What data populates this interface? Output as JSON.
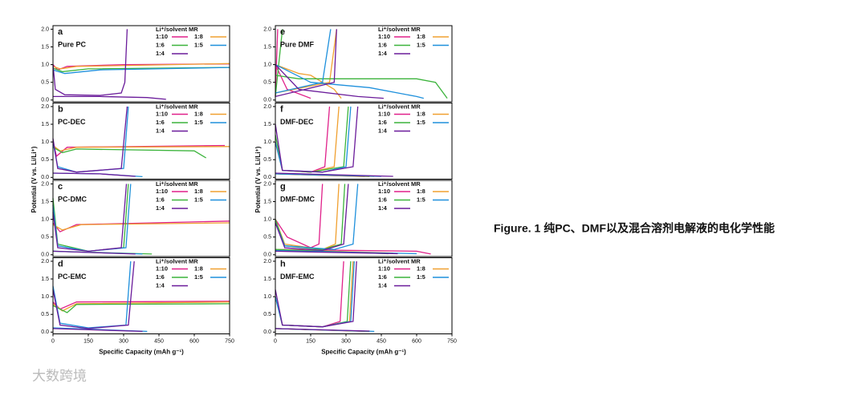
{
  "figure": {
    "ylabel": "Potential (V vs. Li/Li⁺)",
    "caption": "Figure. 1 纯PC、DMF以及混合溶剂电解液的电化学性能",
    "watermark": "大数跨境"
  },
  "chart_data": [
    {
      "type": "line",
      "label": "a",
      "name": "Pure PC",
      "legend_title": "Li⁺/solvent MR",
      "xlim": [
        0,
        750
      ],
      "ylim": [
        -0.05,
        2.1
      ],
      "yticks": [
        {
          "value": 0,
          "label": "0.0"
        },
        0.5,
        {
          "value": 1,
          "label": "1.0"
        },
        1.5,
        {
          "value": 2,
          "label": "2.0"
        }
      ],
      "series": [
        {
          "name": "1:10",
          "color": "#e0218a",
          "x": [
            0,
            20,
            60,
            300,
            750
          ],
          "values": [
            1.0,
            0.85,
            0.95,
            1.0,
            1.02
          ]
        },
        {
          "name": "1:8",
          "color": "#f0a030",
          "x": [
            0,
            30,
            100,
            750
          ],
          "values": [
            0.95,
            0.88,
            0.95,
            1.03
          ]
        },
        {
          "name": "1:6",
          "color": "#3cb43c",
          "x": [
            0,
            40,
            150,
            750
          ],
          "values": [
            0.9,
            0.8,
            0.88,
            0.92
          ]
        },
        {
          "name": "1:5",
          "color": "#1e90dc",
          "x": [
            0,
            50,
            200,
            750
          ],
          "values": [
            0.85,
            0.75,
            0.85,
            0.92
          ]
        },
        {
          "name": "1:4",
          "color": "#6a1b9a",
          "x": [
            0,
            10,
            50,
            200,
            290,
            305,
            315,
            null,
            0,
            200,
            400,
            480
          ],
          "values": [
            1.0,
            0.3,
            0.15,
            0.13,
            0.2,
            0.5,
            2.0,
            null,
            0.1,
            0.1,
            0.07,
            0.02
          ]
        }
      ]
    },
    {
      "type": "line",
      "label": "b",
      "name": "PC-DEC",
      "legend_title": "Li⁺/solvent MR",
      "xlim": [
        0,
        750
      ],
      "ylim": [
        -0.05,
        2.1
      ],
      "yticks": [
        {
          "value": 0,
          "label": "0.0"
        },
        0.5,
        {
          "value": 1,
          "label": "1.0"
        },
        1.5,
        {
          "value": 2,
          "label": "2.0"
        }
      ],
      "series": [
        {
          "name": "1:10",
          "color": "#e0218a",
          "x": [
            0,
            15,
            60,
            730
          ],
          "values": [
            1.0,
            0.6,
            0.85,
            0.9
          ]
        },
        {
          "name": "1:8",
          "color": "#f0a030",
          "x": [
            0,
            30,
            100,
            750
          ],
          "values": [
            0.9,
            0.75,
            0.85,
            0.87
          ]
        },
        {
          "name": "1:6",
          "color": "#3cb43c",
          "x": [
            0,
            40,
            100,
            600,
            650
          ],
          "values": [
            0.85,
            0.7,
            0.8,
            0.75,
            0.55
          ]
        },
        {
          "name": "1:5",
          "color": "#1e90dc",
          "x": [
            0,
            20,
            100,
            300,
            320,
            null,
            0,
            200,
            380
          ],
          "values": [
            1.0,
            0.3,
            0.15,
            0.25,
            2.0,
            null,
            0.12,
            0.1,
            0.02
          ]
        },
        {
          "name": "1:4",
          "color": "#6a1b9a",
          "x": [
            0,
            20,
            100,
            290,
            315,
            null,
            0,
            200,
            350
          ],
          "values": [
            1.1,
            0.25,
            0.15,
            0.25,
            2.0,
            null,
            0.12,
            0.1,
            0.03
          ]
        }
      ]
    },
    {
      "type": "line",
      "label": "c",
      "name": "PC-DMC",
      "legend_title": "Li⁺/solvent MR",
      "xlim": [
        0,
        750
      ],
      "ylim": [
        -0.05,
        2.1
      ],
      "yticks": [
        {
          "value": 0,
          "label": "0.0"
        },
        0.5,
        {
          "value": 1,
          "label": "1.0"
        },
        1.5,
        {
          "value": 2,
          "label": "2.0"
        }
      ],
      "series": [
        {
          "name": "1:10",
          "color": "#e0218a",
          "x": [
            0,
            30,
            100,
            750
          ],
          "values": [
            0.9,
            0.65,
            0.85,
            0.95
          ]
        },
        {
          "name": "1:8",
          "color": "#f0a030",
          "x": [
            0,
            40,
            120,
            750
          ],
          "values": [
            0.85,
            0.7,
            0.85,
            0.9
          ]
        },
        {
          "name": "1:6",
          "color": "#3cb43c",
          "x": [
            0,
            20,
            150,
            300,
            320,
            null,
            0,
            420
          ],
          "values": [
            1.6,
            0.3,
            0.1,
            0.2,
            2.0,
            null,
            0.1,
            0.02
          ]
        },
        {
          "name": "1:5",
          "color": "#1e90dc",
          "x": [
            0,
            20,
            150,
            310,
            330,
            null,
            0,
            380
          ],
          "values": [
            1.4,
            0.25,
            0.1,
            0.2,
            2.0,
            null,
            0.1,
            0.02
          ]
        },
        {
          "name": "1:4",
          "color": "#6a1b9a",
          "x": [
            0,
            20,
            150,
            290,
            312,
            null,
            0,
            350
          ],
          "values": [
            1.2,
            0.2,
            0.1,
            0.2,
            2.0,
            null,
            0.1,
            0.02
          ]
        }
      ]
    },
    {
      "type": "line",
      "label": "d",
      "name": "PC-EMC",
      "legend_title": "Li⁺/solvent MR",
      "xlabel": "Specific Capacity (mAh g⁻¹)",
      "xlim": [
        0,
        750
      ],
      "xticks": [
        0,
        150,
        300,
        450,
        600,
        750
      ],
      "ylim": [
        -0.05,
        2.1
      ],
      "yticks": [
        {
          "value": 0,
          "label": "0.0"
        },
        0.5,
        {
          "value": 1,
          "label": "1.0"
        },
        1.5,
        {
          "value": 2,
          "label": "2.0"
        }
      ],
      "series": [
        {
          "name": "1:10",
          "color": "#e0218a",
          "x": [
            0,
            30,
            100,
            750
          ],
          "values": [
            0.85,
            0.65,
            0.85,
            0.87
          ]
        },
        {
          "name": "1:8",
          "color": "#f0a030",
          "x": [
            0,
            40,
            100,
            750
          ],
          "values": [
            0.8,
            0.6,
            0.8,
            0.85
          ]
        },
        {
          "name": "1:6",
          "color": "#3cb43c",
          "x": [
            0,
            60,
            100,
            750
          ],
          "values": [
            0.75,
            0.55,
            0.78,
            0.8
          ]
        },
        {
          "name": "1:5",
          "color": "#1e90dc",
          "x": [
            0,
            30,
            150,
            310,
            330,
            null,
            0,
            400
          ],
          "values": [
            1.3,
            0.25,
            0.12,
            0.2,
            2.0,
            null,
            0.12,
            0.02
          ]
        },
        {
          "name": "1:4",
          "color": "#6a1b9a",
          "x": [
            0,
            30,
            150,
            320,
            345,
            null,
            0,
            380
          ],
          "values": [
            1.2,
            0.2,
            0.1,
            0.2,
            2.0,
            null,
            0.1,
            0.02
          ]
        }
      ]
    },
    {
      "type": "line",
      "label": "e",
      "name": "Pure DMF",
      "legend_title": "Li⁺/solvent MR",
      "xlim": [
        0,
        750
      ],
      "ylim": [
        -0.05,
        2.1
      ],
      "yticks": [
        {
          "value": 0,
          "label": "0.0"
        },
        0.5,
        {
          "value": 1,
          "label": "1.0"
        },
        1.5,
        {
          "value": 2,
          "label": "2.0"
        }
      ],
      "series": [
        {
          "name": "1:10",
          "color": "#e0218a",
          "x": [
            0,
            10,
            null,
            0,
            50,
            150
          ],
          "values": [
            0.1,
            2.0,
            null,
            1.0,
            0.3,
            0.05
          ]
        },
        {
          "name": "1:8",
          "color": "#f0a030",
          "x": [
            0,
            100,
            150,
            250,
            280,
            null,
            0,
            230,
            260
          ],
          "values": [
            1.0,
            0.75,
            0.7,
            0.3,
            0.05,
            null,
            0.2,
            0.5,
            2.0
          ]
        },
        {
          "name": "1:6",
          "color": "#3cb43c",
          "x": [
            0,
            30,
            null,
            0,
            100,
            600,
            680,
            730
          ],
          "values": [
            0.1,
            2.0,
            null,
            0.7,
            0.6,
            0.6,
            0.5,
            0.05
          ]
        },
        {
          "name": "1:5",
          "color": "#1e90dc",
          "x": [
            0,
            150,
            400,
            600,
            630,
            null,
            0,
            200,
            235
          ],
          "values": [
            1.0,
            0.5,
            0.35,
            0.1,
            0.05,
            null,
            0.2,
            0.5,
            2.0
          ]
        },
        {
          "name": "1:4",
          "color": "#6a1b9a",
          "x": [
            0,
            100,
            350,
            460,
            null,
            0,
            250,
            260
          ],
          "values": [
            1.0,
            0.3,
            0.1,
            0.05,
            null,
            0.1,
            0.5,
            2.0
          ]
        }
      ]
    },
    {
      "type": "line",
      "label": "f",
      "name": "DMF-DEC",
      "legend_title": "Li⁺/solvent MR",
      "xlim": [
        0,
        750
      ],
      "ylim": [
        -0.05,
        2.1
      ],
      "yticks": [
        {
          "value": 0,
          "label": "0.0"
        },
        0.5,
        {
          "value": 1,
          "label": "1.0"
        },
        1.5,
        {
          "value": 2,
          "label": "2.0"
        }
      ],
      "series": [
        {
          "name": "1:10",
          "color": "#e0218a",
          "x": [
            0,
            30,
            150,
            210,
            230,
            null,
            0,
            380
          ],
          "values": [
            1.0,
            0.2,
            0.15,
            0.3,
            2.0,
            null,
            0.1,
            0.02
          ]
        },
        {
          "name": "1:8",
          "color": "#f0a030",
          "x": [
            0,
            30,
            150,
            250,
            270,
            null,
            0,
            400
          ],
          "values": [
            1.0,
            0.2,
            0.15,
            0.3,
            2.0,
            null,
            0.1,
            0.02
          ]
        },
        {
          "name": "1:6",
          "color": "#3cb43c",
          "x": [
            0,
            30,
            150,
            290,
            310,
            null,
            0,
            420
          ],
          "values": [
            1.2,
            0.2,
            0.15,
            0.3,
            2.0,
            null,
            0.1,
            0.03
          ]
        },
        {
          "name": "1:5",
          "color": "#1e90dc",
          "x": [
            0,
            30,
            200,
            300,
            320,
            null,
            0,
            450
          ],
          "values": [
            1.0,
            0.2,
            0.15,
            0.3,
            2.0,
            null,
            0.1,
            0.03
          ]
        },
        {
          "name": "1:4",
          "color": "#6a1b9a",
          "x": [
            0,
            30,
            200,
            330,
            350,
            null,
            0,
            500
          ],
          "values": [
            1.5,
            0.2,
            0.15,
            0.3,
            2.0,
            null,
            0.12,
            0.03
          ]
        }
      ]
    },
    {
      "type": "line",
      "label": "g",
      "name": "DMF-DMC",
      "legend_title": "Li⁺/solvent MR",
      "xlim": [
        0,
        750
      ],
      "ylim": [
        -0.05,
        2.1
      ],
      "yticks": [
        {
          "value": 0,
          "label": "0.0"
        },
        0.5,
        {
          "value": 1,
          "label": "1.0"
        },
        1.5,
        {
          "value": 2,
          "label": "2.0"
        }
      ],
      "series": [
        {
          "name": "1:10",
          "color": "#e0218a",
          "x": [
            0,
            50,
            150,
            185,
            200,
            null,
            0,
            600,
            660
          ],
          "values": [
            1.0,
            0.5,
            0.2,
            0.3,
            2.0,
            null,
            0.15,
            0.1,
            0.02
          ]
        },
        {
          "name": "1:8",
          "color": "#f0a030",
          "x": [
            0,
            40,
            200,
            255,
            270,
            null,
            0,
            500
          ],
          "values": [
            1.0,
            0.3,
            0.15,
            0.3,
            2.0,
            null,
            0.15,
            0.05
          ]
        },
        {
          "name": "1:6",
          "color": "#3cb43c",
          "x": [
            0,
            40,
            200,
            280,
            295,
            null,
            0,
            480
          ],
          "values": [
            1.0,
            0.25,
            0.15,
            0.3,
            2.0,
            null,
            0.15,
            0.03
          ]
        },
        {
          "name": "1:5",
          "color": "#1e90dc",
          "x": [
            0,
            40,
            250,
            330,
            350,
            null,
            0,
            600
          ],
          "values": [
            0.9,
            0.25,
            0.15,
            0.3,
            2.0,
            null,
            0.12,
            0.03
          ]
        },
        {
          "name": "1:4",
          "color": "#6a1b9a",
          "x": [
            0,
            40,
            200,
            290,
            310,
            null,
            0,
            520
          ],
          "values": [
            0.9,
            0.2,
            0.12,
            0.3,
            2.0,
            null,
            0.1,
            0.03
          ]
        }
      ]
    },
    {
      "type": "line",
      "label": "h",
      "name": "DMF-EMC",
      "legend_title": "Li⁺/solvent MR",
      "xlabel": "Specific Capacity (mAh g⁻¹)",
      "xlim": [
        0,
        750
      ],
      "xticks": [
        0,
        150,
        300,
        450,
        600,
        750
      ],
      "ylim": [
        -0.05,
        2.1
      ],
      "yticks": [
        {
          "value": 0,
          "label": "0.0"
        },
        0.5,
        {
          "value": 1,
          "label": "1.0"
        },
        1.5,
        {
          "value": 2,
          "label": "2.0"
        }
      ],
      "series": [
        {
          "name": "1:10",
          "color": "#e0218a",
          "x": [
            0,
            30,
            200,
            275,
            290,
            null,
            0,
            380
          ],
          "values": [
            1.0,
            0.2,
            0.15,
            0.3,
            2.0,
            null,
            0.1,
            0.02
          ]
        },
        {
          "name": "1:8",
          "color": "#f0a030",
          "x": [
            0,
            30,
            200,
            315,
            330,
            null,
            0,
            400
          ],
          "values": [
            1.0,
            0.2,
            0.15,
            0.3,
            2.0,
            null,
            0.1,
            0.02
          ]
        },
        {
          "name": "1:6",
          "color": "#3cb43c",
          "x": [
            0,
            30,
            200,
            305,
            320,
            null,
            0,
            400
          ],
          "values": [
            1.0,
            0.2,
            0.15,
            0.3,
            2.0,
            null,
            0.1,
            0.02
          ]
        },
        {
          "name": "1:5",
          "color": "#1e90dc",
          "x": [
            0,
            30,
            200,
            320,
            335,
            null,
            0,
            420
          ],
          "values": [
            1.0,
            0.2,
            0.15,
            0.3,
            2.0,
            null,
            0.1,
            0.02
          ]
        },
        {
          "name": "1:4",
          "color": "#6a1b9a",
          "x": [
            0,
            30,
            200,
            330,
            345,
            null,
            0,
            400
          ],
          "values": [
            1.2,
            0.2,
            0.15,
            0.3,
            2.0,
            null,
            0.1,
            0.03
          ]
        }
      ]
    }
  ]
}
